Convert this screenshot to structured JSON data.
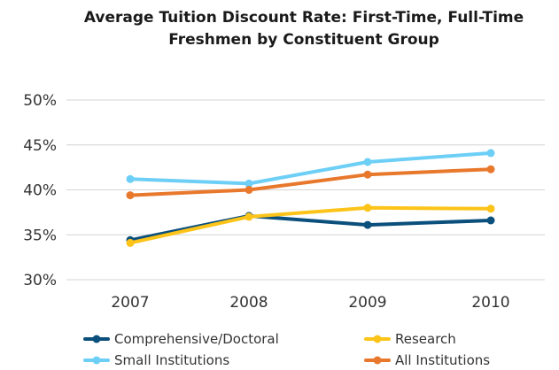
{
  "chart_data": {
    "type": "line",
    "title": [
      "Average Tuition Discount Rate: First-Time, Full-Time",
      "Freshmen by Constituent Group"
    ],
    "xlabel": "",
    "ylabel": "",
    "categories": [
      "2007",
      "2008",
      "2009",
      "2010"
    ],
    "ylim": [
      30,
      50
    ],
    "yticks": [
      30,
      35,
      40,
      45,
      50
    ],
    "ytick_labels": [
      "30%",
      "35%",
      "40%",
      "45%",
      "50%"
    ],
    "grid": true,
    "legend_position": "bottom",
    "series": [
      {
        "name": "Comprehensive/Doctoral",
        "values": [
          34.4,
          37.1,
          36.1,
          36.6
        ],
        "color": "#0b4f7c"
      },
      {
        "name": "Research",
        "values": [
          34.1,
          37.0,
          38.0,
          37.9
        ],
        "color": "#fcc419"
      },
      {
        "name": "Small Institutions",
        "values": [
          41.2,
          40.7,
          43.1,
          44.1
        ],
        "color": "#6dcff6"
      },
      {
        "name": "All Institutions",
        "values": [
          39.4,
          40.0,
          41.7,
          42.3
        ],
        "color": "#e8782c"
      }
    ]
  }
}
